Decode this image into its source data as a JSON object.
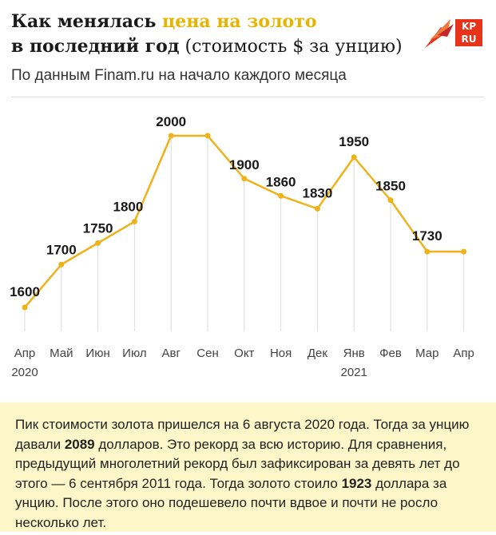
{
  "header": {
    "title_part1": "Как менялась ",
    "title_accent": "цена на золото",
    "title_part2": "в последний год",
    "title_paren": " (стоимость $ за унцию)",
    "subtitle": "По данным Finam.ru на начало каждого месяца"
  },
  "logo": {
    "line1": "KP",
    "line2": "RU"
  },
  "colors": {
    "line": "#f0b21a",
    "accent": "#e8b400",
    "note_bg": "#fdf6c8",
    "logo_red": "#e63319"
  },
  "chart_data": {
    "type": "line",
    "title": "",
    "xlabel": "",
    "ylabel": "",
    "grid": "vertical",
    "categories": [
      "Апр",
      "Май",
      "Июн",
      "Июл",
      "Авг",
      "Сен",
      "Окт",
      "Ноя",
      "Дек",
      "Янв",
      "Фев",
      "Мар",
      "Апр"
    ],
    "year_labels": [
      {
        "category_index": 0,
        "text": "2020"
      },
      {
        "category_index": 9,
        "text": "2021"
      }
    ],
    "series": [
      {
        "values": [
          1600,
          1700,
          1750,
          1800,
          2000,
          2000,
          1900,
          1860,
          1830,
          1950,
          1850,
          1730,
          1730
        ]
      }
    ],
    "data_labels": [
      "1600",
      "1700",
      "1750",
      "1800",
      "2000",
      "",
      "1900",
      "1860",
      "1830",
      "1950",
      "1850",
      "1730",
      ""
    ],
    "ylim": [
      1600,
      2000
    ]
  },
  "note": {
    "t1": "Пик стоимости золота пришелся на 6 августа 2020 года. Тогда за унцию давали ",
    "b1": "2089",
    "t2": " долларов. Это рекорд за всю историю. Для сравнения, предыдущий многолетний рекорд был зафиксирован за девять лет до этого — 6 сентября 2011 года. Тогда золото стоило ",
    "b2": "1923",
    "t3": " доллара за унцию. После этого оно подешевело почти вдвое и почти не росло несколько лет."
  }
}
